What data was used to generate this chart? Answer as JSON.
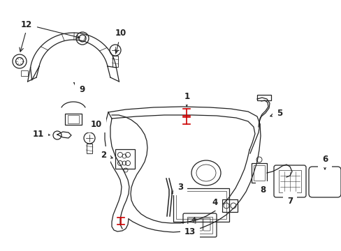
{
  "bg_color": "#ffffff",
  "line_color": "#222222",
  "red_color": "#cc0000",
  "figsize": [
    4.89,
    3.6
  ],
  "dpi": 100
}
